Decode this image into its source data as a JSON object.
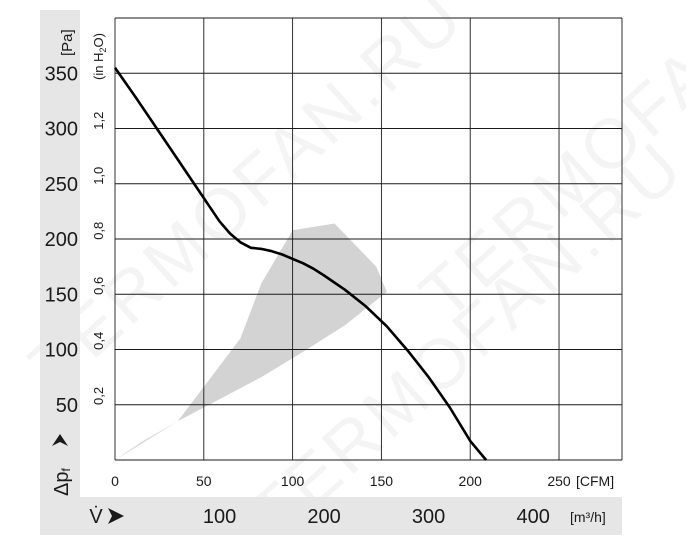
{
  "units": {
    "pressure_pa": "[Pa]",
    "pressure_inh2o_prefix": "(in H",
    "pressure_inh2o_sub": "2",
    "pressure_inh2o_suffix": "O)",
    "flow_cfm": "[CFM]",
    "flow_m3h": "[m³/h]"
  },
  "axis_symbols": {
    "pressure": "Δp",
    "pressure_sub": "f",
    "flow": "V̇"
  },
  "watermark_text": "TERMOFAN.RU",
  "colors": {
    "grid": "#1a1a1a",
    "curve": "#000000",
    "shade": "#d3d3d3",
    "band": "#e6e6e6",
    "text": "#1a1a1a"
  },
  "chart_data": {
    "type": "line",
    "title": "",
    "xlabel": "[m³/h]",
    "ylabel": "[Pa]",
    "xlim": [
      0,
      485
    ],
    "ylim": [
      0,
      400
    ],
    "grid": true,
    "pa_ticks": [
      50,
      100,
      150,
      200,
      250,
      300,
      350
    ],
    "inh2o_ticks": [
      {
        "value": 0.2,
        "label": "0,2"
      },
      {
        "value": 0.4,
        "label": "0,4"
      },
      {
        "value": 0.6,
        "label": "0,6"
      },
      {
        "value": 0.8,
        "label": "0,8"
      },
      {
        "value": 1.0,
        "label": "1,0"
      },
      {
        "value": 1.2,
        "label": "1,2"
      }
    ],
    "cfm_ticks": [
      0,
      50,
      100,
      150,
      200,
      250
    ],
    "m3h_ticks": [
      100,
      200,
      300,
      400
    ],
    "series": [
      {
        "x": [
          0,
          20,
          40,
          60,
          80,
          100,
          110,
          120,
          130,
          140,
          150,
          160,
          170,
          180,
          190,
          200,
          220,
          240,
          260,
          280,
          300,
          320,
          340,
          355
        ],
        "y": [
          355,
          328,
          300,
          272,
          244,
          216,
          205,
          197,
          192,
          191,
          189,
          186,
          182,
          178,
          173,
          167,
          154,
          139,
          121,
          99,
          75,
          48,
          17,
          0
        ]
      }
    ],
    "operating_range": {
      "x": [
        0,
        60,
        120,
        140,
        170,
        210,
        250,
        260,
        220,
        180,
        140,
        100,
        60,
        25,
        0
      ],
      "y": [
        0,
        35,
        110,
        160,
        208,
        214,
        175,
        152,
        122,
        98,
        75,
        55,
        35,
        16,
        0
      ]
    }
  }
}
